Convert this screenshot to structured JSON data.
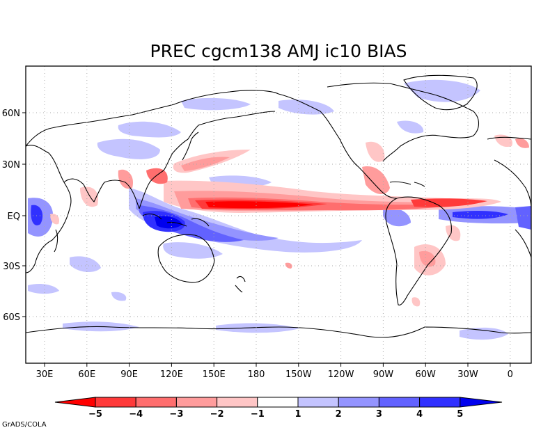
{
  "title": "PREC cgcm138 AMJ ic10 BIAS",
  "credit": "GrADS/COLA",
  "map": {
    "projection": "lat-lon",
    "lon_range": [
      20,
      380
    ],
    "lat_range": [
      -90,
      90
    ],
    "lon_ticks": [
      "30E",
      "60E",
      "90E",
      "120E",
      "150E",
      "180",
      "150W",
      "120W",
      "90W",
      "60W",
      "30W",
      "0"
    ],
    "lat_ticks": [
      "60N",
      "30N",
      "EQ",
      "30S",
      "60S"
    ]
  },
  "colorbar": {
    "labels": [
      "-5",
      "-4",
      "-3",
      "-2",
      "-1",
      "1",
      "2",
      "3",
      "4",
      "5"
    ],
    "colors": [
      "#ff0000",
      "#ff3a3a",
      "#ff6e6e",
      "#ff9c9c",
      "#ffc6c6",
      "#ffffff",
      "#c4c4ff",
      "#9494ff",
      "#6262ff",
      "#3030ff",
      "#0000ee"
    ]
  }
}
